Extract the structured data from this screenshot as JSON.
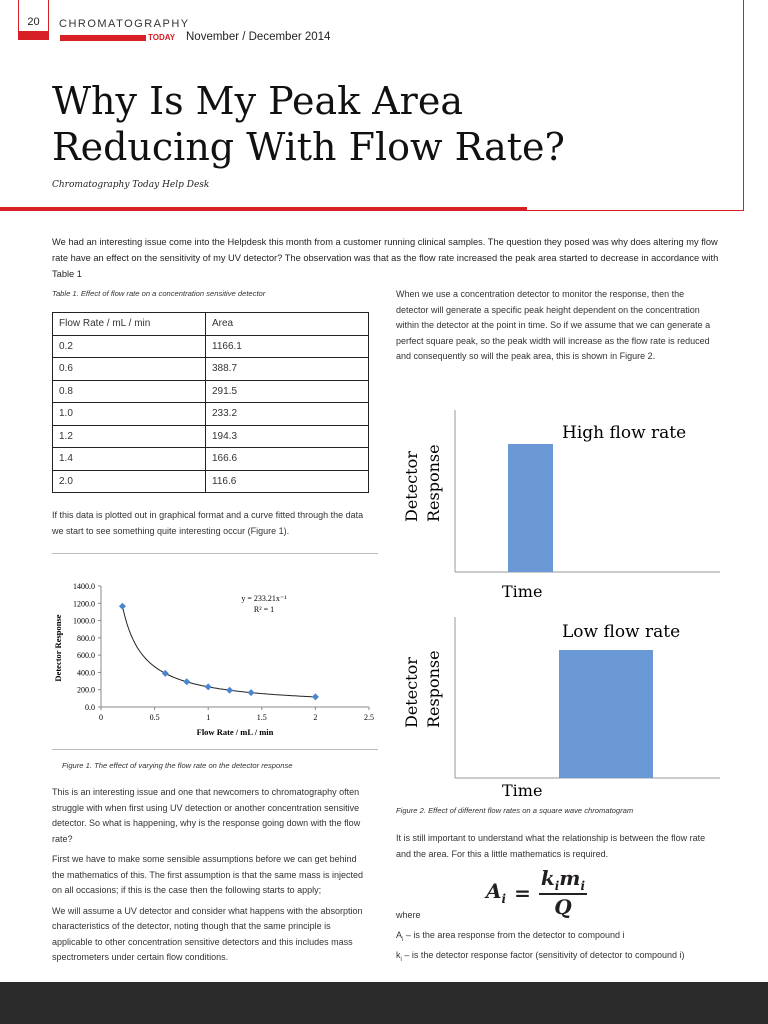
{
  "header": {
    "page_number": "20",
    "logo_main": "CHROMATOGRAPHY",
    "logo_sub": "TODAY",
    "issue_date": "November / December 2014",
    "colors": {
      "accent": "#d71f26"
    }
  },
  "article": {
    "title_line1": "Why Is My Peak Area",
    "title_line2": "Reducing With Flow Rate?",
    "byline": "Chromatography Today Help Desk",
    "intro": "We had an interesting issue come into the Helpdesk this month from a customer running clinical samples. The question they posed was why does altering my flow rate have an effect on the sensitivity of my UV detector? The observation was that as the flow rate increased the peak area started to decrease in accordance with Table 1",
    "table_caption": "Table 1. Effect of flow rate on a concentration sensitive detector",
    "table": {
      "headers": [
        "Flow Rate / mL / min",
        "Area"
      ],
      "rows": [
        [
          "0.2",
          "1166.1"
        ],
        [
          "0.6",
          "388.7"
        ],
        [
          "0.8",
          "291.5"
        ],
        [
          "1.0",
          "233.2"
        ],
        [
          "1.2",
          "194.3"
        ],
        [
          "1.4",
          "166.6"
        ],
        [
          "2.0",
          "116.6"
        ]
      ]
    },
    "para_plot": "If this data is plotted out in graphical format and a curve fitted through the data we start to see something quite interesting occur (Figure 1).",
    "fig1_caption": "Figure 1. The effect of varying the flow rate on the detector response",
    "left_p1": "This is an interesting issue and one that newcomers to chromatography often struggle with when first using UV detection or another concentration sensitive detector. So what is happening, why is the response going down with the flow rate?",
    "left_p2": "First we have to make some sensible assumptions before we can get behind the mathematics of this. The first assumption is that the same mass is injected on all occasions; if this is the case then the following starts to apply;",
    "left_p3": "We will assume a UV detector and consider what happens with the absorption characteristics of the detector, noting though that the same principle is applicable to other concentration sensitive detectors and this includes mass spectrometers under certain flow conditions.",
    "right_p1": "When we use a concentration detector to monitor the response, then the detector will generate a specific peak height dependent on the concentration within the detector at the point in time. So if we assume that we can generate a perfect square peak, so the peak width will increase as the flow rate is reduced and consequently so will the peak area, this is shown in Figure 2.",
    "fig2_caption": "Figure 2. Effect of different flow rates on a square wave chromatogram",
    "right_p2": "It is still important to understand what the relationship is between the flow rate and the area. For this a little mathematics is required.",
    "equation": {
      "lhs": "A",
      "lhs_sub": "i",
      "num": "k",
      "num_sub1": "i",
      "num2": "m",
      "num_sub2": "i",
      "den": "Q"
    },
    "where": "where",
    "def1_sym": "A",
    "def1_sub": "i",
    "def1_text": " – is the area response from the detector to compound i",
    "def2_sym": "k",
    "def2_sub": "i",
    "def2_text": " – is the detector response factor (sensitivity of detector to compound i)"
  },
  "figure2": {
    "panels": [
      {
        "label": "High flow rate",
        "ylabel1": "Detector",
        "ylabel2": "Response",
        "xlabel": "Time"
      },
      {
        "label": "Low flow rate",
        "ylabel1": "Detector",
        "ylabel2": "Response",
        "xlabel": "Time"
      }
    ],
    "bar_color": "#6a98d4"
  },
  "chart_data": {
    "type": "scatter",
    "xlabel": "Flow Rate / mL / min",
    "ylabel": "Detector Response",
    "x": [
      0.2,
      0.6,
      0.8,
      1.0,
      1.2,
      1.4,
      2.0
    ],
    "y": [
      1166.1,
      388.7,
      291.5,
      233.2,
      194.3,
      166.6,
      116.6
    ],
    "xlim": [
      0,
      2.5
    ],
    "ylim": [
      0,
      1400
    ],
    "xticks": [
      "0",
      "0.5",
      "1",
      "1.5",
      "2",
      "2.5"
    ],
    "yticks": [
      "0.0",
      "200.0",
      "400.0",
      "600.0",
      "800.0",
      "1000.0",
      "1200.0",
      "1400.0"
    ],
    "trendline": {
      "equation": "y = 233.21x⁻¹",
      "r2": "R² = 1",
      "coefficient": 233.21,
      "exponent": -1
    },
    "marker_color": "#4a86d0",
    "grid": false,
    "legend": "none"
  }
}
